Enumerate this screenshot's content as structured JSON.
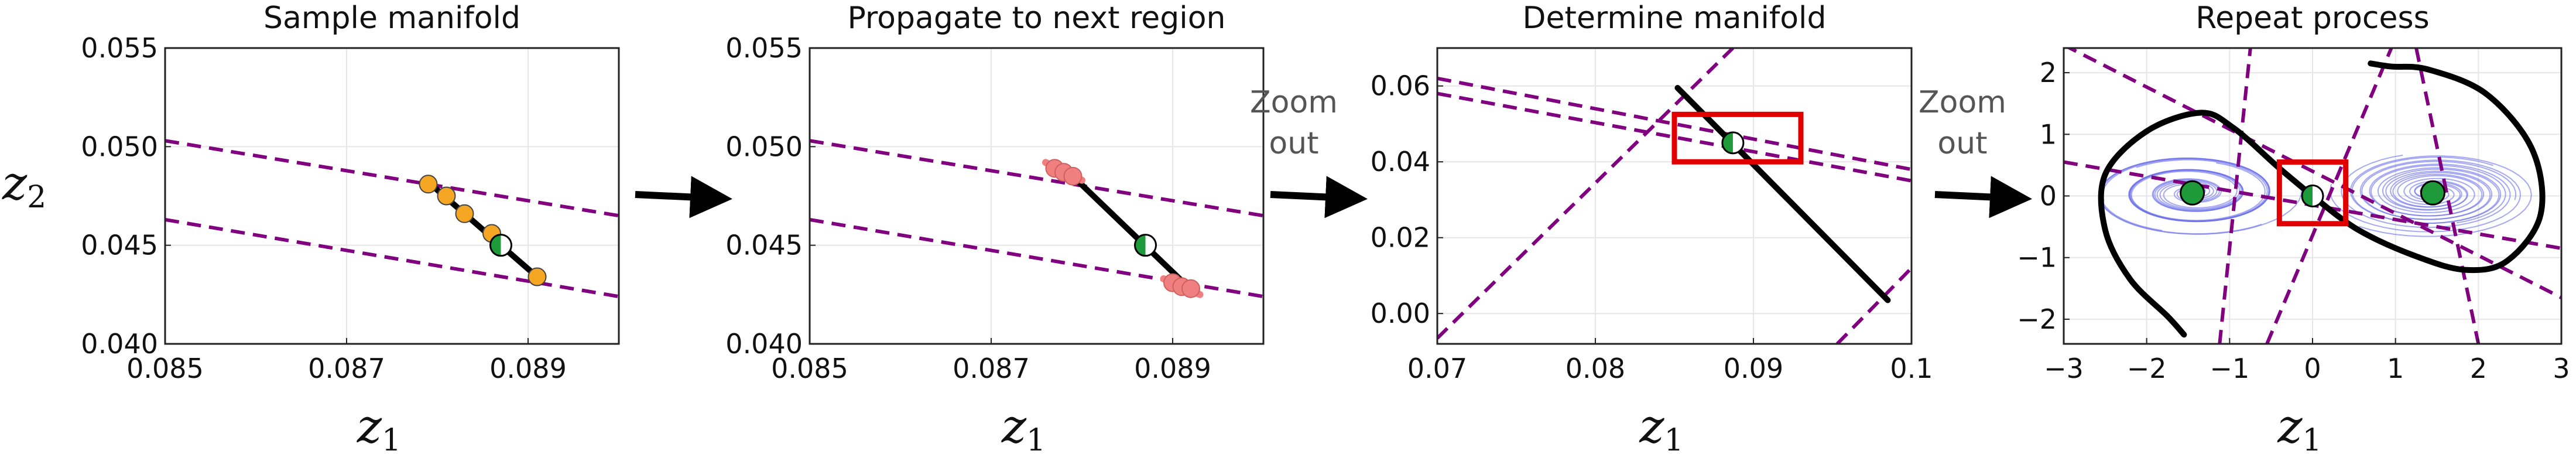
{
  "figure": {
    "annotations": [
      {
        "text": [
          "Zoom",
          "out"
        ]
      },
      {
        "text": [
          "Zoom",
          "out"
        ]
      }
    ]
  },
  "chart_data": [
    {
      "type": "line",
      "title": "Sample manifold",
      "xlabel": "z",
      "xlabel_sub": "1",
      "ylabel": "z",
      "ylabel_sub": "2",
      "xlim": [
        0.085,
        0.09
      ],
      "ylim": [
        0.04,
        0.055
      ],
      "xticks": [
        0.085,
        0.087,
        0.089
      ],
      "xtick_labels": [
        "0.085",
        "0.087",
        "0.089"
      ],
      "yticks": [
        0.04,
        0.045,
        0.05,
        0.055
      ],
      "ytick_labels": [
        "0.040",
        "0.045",
        "0.050",
        "0.055"
      ],
      "lines": [
        {
          "style": "dashed",
          "color": "#800080",
          "points": [
            [
              0.085,
              0.0503
            ],
            [
              0.09,
              0.0465
            ]
          ]
        },
        {
          "style": "dashed",
          "color": "#800080",
          "points": [
            [
              0.085,
              0.0463
            ],
            [
              0.09,
              0.0424
            ]
          ]
        },
        {
          "style": "solid",
          "color": "#000000",
          "points": [
            [
              0.0879,
              0.0482
            ],
            [
              0.0891,
              0.0434
            ]
          ]
        }
      ],
      "points": [
        {
          "x": 0.0879,
          "y": 0.0481,
          "color": "#f5a623"
        },
        {
          "x": 0.0881,
          "y": 0.0475,
          "color": "#f5a623"
        },
        {
          "x": 0.0883,
          "y": 0.0466,
          "color": "#f5a623"
        },
        {
          "x": 0.0886,
          "y": 0.0456,
          "color": "#f5a623"
        },
        {
          "x": 0.0891,
          "y": 0.0434,
          "color": "#f5a623"
        }
      ],
      "equilibrium": {
        "x": 0.0887,
        "y": 0.045
      }
    },
    {
      "type": "line",
      "title": "Propagate to next region",
      "xlabel": "z",
      "xlabel_sub": "1",
      "xlim": [
        0.085,
        0.09
      ],
      "ylim": [
        0.04,
        0.055
      ],
      "xticks": [
        0.085,
        0.087,
        0.089
      ],
      "xtick_labels": [
        "0.085",
        "0.087",
        "0.089"
      ],
      "yticks": [
        0.04,
        0.045,
        0.05,
        0.055
      ],
      "ytick_labels": [
        "0.040",
        "0.045",
        "0.050",
        "0.055"
      ],
      "lines": [
        {
          "style": "dashed",
          "color": "#800080",
          "points": [
            [
              0.085,
              0.0503
            ],
            [
              0.09,
              0.0465
            ]
          ]
        },
        {
          "style": "dashed",
          "color": "#800080",
          "points": [
            [
              0.085,
              0.0463
            ],
            [
              0.09,
              0.0424
            ]
          ]
        },
        {
          "style": "solid",
          "color": "#000000",
          "points": [
            [
              0.0879,
              0.0485
            ],
            [
              0.0891,
              0.0432
            ]
          ]
        },
        {
          "style": "solid",
          "color": "#f08080",
          "width": 12,
          "points": [
            [
              0.0876,
              0.0492
            ],
            [
              0.088,
              0.0483
            ]
          ]
        },
        {
          "style": "solid",
          "color": "#f08080",
          "width": 12,
          "points": [
            [
              0.0889,
              0.0433
            ],
            [
              0.0893,
              0.0425
            ]
          ]
        }
      ],
      "points": [
        {
          "x": 0.0877,
          "y": 0.0489,
          "color": "#f08080"
        },
        {
          "x": 0.0878,
          "y": 0.0487,
          "color": "#f08080"
        },
        {
          "x": 0.0879,
          "y": 0.0485,
          "color": "#f08080"
        },
        {
          "x": 0.089,
          "y": 0.0431,
          "color": "#f08080"
        },
        {
          "x": 0.0891,
          "y": 0.0429,
          "color": "#f08080"
        },
        {
          "x": 0.0892,
          "y": 0.0428,
          "color": "#f08080"
        }
      ],
      "equilibrium": {
        "x": 0.0887,
        "y": 0.045
      }
    },
    {
      "type": "line",
      "title": "Determine manifold",
      "xlabel": "z",
      "xlabel_sub": "1",
      "xlim": [
        0.07,
        0.1
      ],
      "ylim": [
        -0.008,
        0.07
      ],
      "xticks": [
        0.07,
        0.08,
        0.09,
        0.1
      ],
      "xtick_labels": [
        "0.07",
        "0.08",
        "0.09",
        "0.1"
      ],
      "yticks": [
        0.0,
        0.02,
        0.04,
        0.06
      ],
      "ytick_labels": [
        "0.00",
        "0.02",
        "0.04",
        "0.06"
      ],
      "lines": [
        {
          "style": "dashed",
          "color": "#800080",
          "points": [
            [
              0.07,
              0.062
            ],
            [
              0.1,
              0.038
            ]
          ]
        },
        {
          "style": "dashed",
          "color": "#800080",
          "points": [
            [
              0.07,
              0.058
            ],
            [
              0.1,
              0.035
            ]
          ]
        },
        {
          "style": "dashed",
          "color": "#800080",
          "points": [
            [
              0.07,
              -0.0065
            ],
            [
              0.0887,
              0.07
            ]
          ]
        },
        {
          "style": "dashed",
          "color": "#800080",
          "points": [
            [
              0.0953,
              -0.008
            ],
            [
              0.1,
              0.012
            ]
          ]
        },
        {
          "style": "solid",
          "color": "#000000",
          "points": [
            [
              0.0852,
              0.0595
            ],
            [
              0.0985,
              0.0035
            ]
          ]
        }
      ],
      "points": [],
      "equilibrium": {
        "x": 0.0887,
        "y": 0.045
      },
      "highlight_box": {
        "x0": 0.085,
        "x1": 0.093,
        "y0": 0.04,
        "y1": 0.0525,
        "color": "#e00000"
      }
    },
    {
      "type": "line",
      "title": "Repeat process",
      "xlabel": "z",
      "xlabel_sub": "1",
      "xlim": [
        -3,
        3
      ],
      "ylim": [
        -2.4,
        2.4
      ],
      "xticks": [
        -3,
        -2,
        -1,
        0,
        1,
        2,
        3
      ],
      "xtick_labels": [
        "−3",
        "−2",
        "−1",
        "0",
        "1",
        "2",
        "3"
      ],
      "yticks": [
        -2,
        -1,
        0,
        1,
        2
      ],
      "ytick_labels": [
        "−2",
        "−1",
        "0",
        "1",
        "2"
      ],
      "lines": [
        {
          "style": "dashed",
          "color": "#800080",
          "points": [
            [
              -3,
              2.45
            ],
            [
              3,
              -1.65
            ]
          ]
        },
        {
          "style": "dashed",
          "color": "#800080",
          "points": [
            [
              -3,
              0.55
            ],
            [
              3,
              -0.85
            ]
          ]
        },
        {
          "style": "dashed",
          "color": "#800080",
          "points": [
            [
              -1.12,
              -2.4
            ],
            [
              -0.75,
              2.4
            ]
          ]
        },
        {
          "style": "dashed",
          "color": "#800080",
          "points": [
            [
              -0.55,
              -2.4
            ],
            [
              0.95,
              2.4
            ]
          ]
        },
        {
          "style": "dashed",
          "color": "#800080",
          "points": [
            [
              1.25,
              2.4
            ],
            [
              2.0,
              -2.4
            ]
          ]
        }
      ],
      "curves": [
        {
          "style": "solid",
          "color": "#000000",
          "points": [
            [
              0.0,
              0.0
            ],
            [
              0.55,
              -0.55
            ],
            [
              1.25,
              -0.98
            ],
            [
              1.85,
              -1.2
            ],
            [
              2.35,
              -1.05
            ],
            [
              2.75,
              -0.3
            ],
            [
              2.65,
              0.75
            ],
            [
              2.1,
              1.65
            ],
            [
              1.4,
              2.05
            ],
            [
              0.95,
              2.1
            ],
            [
              0.7,
              2.15
            ]
          ]
        },
        {
          "style": "solid",
          "color": "#000000",
          "points": [
            [
              0.0,
              0.0
            ],
            [
              -0.4,
              0.45
            ],
            [
              -0.95,
              1.1
            ],
            [
              -1.35,
              1.35
            ],
            [
              -2.0,
              1.05
            ],
            [
              -2.5,
              0.35
            ],
            [
              -2.5,
              -0.55
            ],
            [
              -2.2,
              -1.35
            ],
            [
              -1.75,
              -1.95
            ],
            [
              -1.55,
              -2.25
            ]
          ]
        }
      ],
      "equilibria": [
        {
          "x": -1.45,
          "y": 0.05,
          "color": "#1f9a3a"
        },
        {
          "x": 0.0,
          "y": 0.0,
          "half": true
        },
        {
          "x": 1.45,
          "y": 0.05,
          "color": "#1f9a3a"
        }
      ],
      "spirals_color": "#6a6fe8",
      "highlight_box": {
        "x0": -0.4,
        "x1": 0.4,
        "y0": -0.45,
        "y1": 0.55,
        "color": "#e00000"
      }
    }
  ]
}
